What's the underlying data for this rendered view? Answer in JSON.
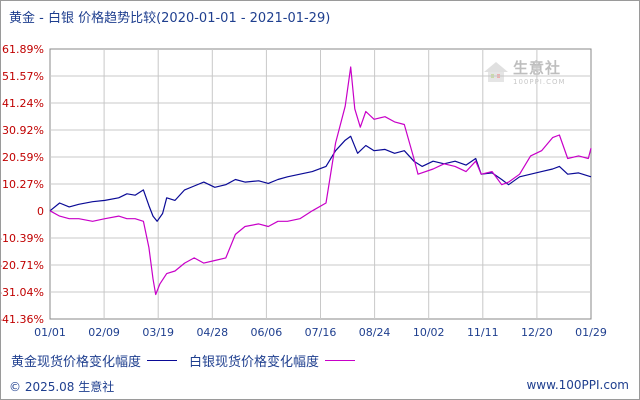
{
  "title": "黄金 - 白银 价格趋势比较(2020-01-01 - 2021-01-29)",
  "watermark": {
    "name": "生意社",
    "sub": "100PPI.COM"
  },
  "footer": {
    "left": "© 2025.08 生意社",
    "right": "www.100PPI.com"
  },
  "colors": {
    "gold": "#0a0a96",
    "silver": "#c800c8",
    "grid": "#c8c8c8",
    "axis_text": "#c00000",
    "x_text": "#1f3f8f"
  },
  "chart_data": {
    "type": "line",
    "xlim": [
      "2020-01-01",
      "2021-01-29"
    ],
    "ylim": [
      -41.36,
      61.89
    ],
    "y_ticks": [
      "61.89%",
      "51.57%",
      "41.24%",
      "30.92%",
      "20.59%",
      "10.27%",
      "0",
      "-10.39%",
      "-20.71%",
      "-31.04%",
      "-41.36%"
    ],
    "x_ticks": [
      "01/01",
      "02/09",
      "03/19",
      "04/28",
      "06/06",
      "07/16",
      "08/24",
      "10/02",
      "11/11",
      "12/20",
      "01/29"
    ],
    "grid": true,
    "legend_position": "bottom-left",
    "series": [
      {
        "name": "黄金现货价格变化幅度",
        "color": "#0a0a96",
        "points": [
          [
            "2020-01-01",
            0
          ],
          [
            "2020-01-08",
            3
          ],
          [
            "2020-01-15",
            1.5
          ],
          [
            "2020-01-22",
            2.5
          ],
          [
            "2020-02-01",
            3.5
          ],
          [
            "2020-02-10",
            4
          ],
          [
            "2020-02-20",
            5
          ],
          [
            "2020-02-26",
            6.5
          ],
          [
            "2020-03-03",
            6
          ],
          [
            "2020-03-09",
            8
          ],
          [
            "2020-03-13",
            2
          ],
          [
            "2020-03-16",
            -2
          ],
          [
            "2020-03-19",
            -4
          ],
          [
            "2020-03-23",
            -1
          ],
          [
            "2020-03-26",
            5
          ],
          [
            "2020-04-01",
            4
          ],
          [
            "2020-04-08",
            8
          ],
          [
            "2020-04-15",
            9.5
          ],
          [
            "2020-04-22",
            11
          ],
          [
            "2020-04-30",
            9
          ],
          [
            "2020-05-08",
            10
          ],
          [
            "2020-05-15",
            12
          ],
          [
            "2020-05-22",
            11
          ],
          [
            "2020-06-01",
            11.5
          ],
          [
            "2020-06-08",
            10.5
          ],
          [
            "2020-06-15",
            12
          ],
          [
            "2020-06-22",
            13
          ],
          [
            "2020-07-01",
            14
          ],
          [
            "2020-07-10",
            15
          ],
          [
            "2020-07-20",
            17
          ],
          [
            "2020-07-27",
            23
          ],
          [
            "2020-08-03",
            27
          ],
          [
            "2020-08-07",
            28.5
          ],
          [
            "2020-08-12",
            22
          ],
          [
            "2020-08-18",
            25
          ],
          [
            "2020-08-24",
            23
          ],
          [
            "2020-09-01",
            23.5
          ],
          [
            "2020-09-08",
            22
          ],
          [
            "2020-09-15",
            23
          ],
          [
            "2020-09-22",
            19
          ],
          [
            "2020-09-28",
            17
          ],
          [
            "2020-10-06",
            19
          ],
          [
            "2020-10-14",
            18
          ],
          [
            "2020-10-22",
            19
          ],
          [
            "2020-10-30",
            17.5
          ],
          [
            "2020-11-06",
            20
          ],
          [
            "2020-11-10",
            14
          ],
          [
            "2020-11-18",
            14.5
          ],
          [
            "2020-11-25",
            12
          ],
          [
            "2020-11-30",
            10
          ],
          [
            "2020-12-08",
            13
          ],
          [
            "2020-12-16",
            14
          ],
          [
            "2020-12-24",
            15
          ],
          [
            "2021-01-01",
            16
          ],
          [
            "2021-01-06",
            17
          ],
          [
            "2021-01-12",
            14
          ],
          [
            "2021-01-20",
            14.5
          ],
          [
            "2021-01-29",
            13
          ]
        ]
      },
      {
        "name": "白银现货价格变化幅度",
        "color": "#c800c8",
        "points": [
          [
            "2020-01-01",
            0
          ],
          [
            "2020-01-08",
            -2
          ],
          [
            "2020-01-15",
            -3
          ],
          [
            "2020-01-22",
            -3
          ],
          [
            "2020-02-01",
            -4
          ],
          [
            "2020-02-10",
            -3
          ],
          [
            "2020-02-20",
            -2
          ],
          [
            "2020-02-26",
            -3
          ],
          [
            "2020-03-03",
            -3
          ],
          [
            "2020-03-09",
            -4
          ],
          [
            "2020-03-13",
            -14
          ],
          [
            "2020-03-16",
            -26
          ],
          [
            "2020-03-18",
            -32
          ],
          [
            "2020-03-21",
            -28
          ],
          [
            "2020-03-26",
            -24
          ],
          [
            "2020-04-01",
            -23
          ],
          [
            "2020-04-08",
            -20
          ],
          [
            "2020-04-15",
            -18
          ],
          [
            "2020-04-22",
            -20
          ],
          [
            "2020-04-30",
            -19
          ],
          [
            "2020-05-08",
            -18
          ],
          [
            "2020-05-15",
            -9
          ],
          [
            "2020-05-22",
            -6
          ],
          [
            "2020-06-01",
            -5
          ],
          [
            "2020-06-08",
            -6
          ],
          [
            "2020-06-15",
            -4
          ],
          [
            "2020-06-22",
            -4
          ],
          [
            "2020-07-01",
            -3
          ],
          [
            "2020-07-10",
            0
          ],
          [
            "2020-07-20",
            3
          ],
          [
            "2020-07-27",
            26
          ],
          [
            "2020-08-03",
            40
          ],
          [
            "2020-08-07",
            55
          ],
          [
            "2020-08-10",
            39
          ],
          [
            "2020-08-14",
            32
          ],
          [
            "2020-08-18",
            38
          ],
          [
            "2020-08-24",
            35
          ],
          [
            "2020-09-01",
            36
          ],
          [
            "2020-09-08",
            34
          ],
          [
            "2020-09-15",
            33
          ],
          [
            "2020-09-22",
            20
          ],
          [
            "2020-09-25",
            14
          ],
          [
            "2020-10-06",
            16
          ],
          [
            "2020-10-14",
            18
          ],
          [
            "2020-10-22",
            17
          ],
          [
            "2020-10-30",
            15
          ],
          [
            "2020-11-06",
            19
          ],
          [
            "2020-11-10",
            14
          ],
          [
            "2020-11-18",
            15
          ],
          [
            "2020-11-25",
            10
          ],
          [
            "2020-11-30",
            11
          ],
          [
            "2020-12-08",
            14
          ],
          [
            "2020-12-16",
            21
          ],
          [
            "2020-12-24",
            23
          ],
          [
            "2021-01-01",
            28
          ],
          [
            "2021-01-06",
            29
          ],
          [
            "2021-01-12",
            20
          ],
          [
            "2021-01-20",
            21
          ],
          [
            "2021-01-27",
            20
          ],
          [
            "2021-01-29",
            24
          ]
        ]
      }
    ]
  }
}
